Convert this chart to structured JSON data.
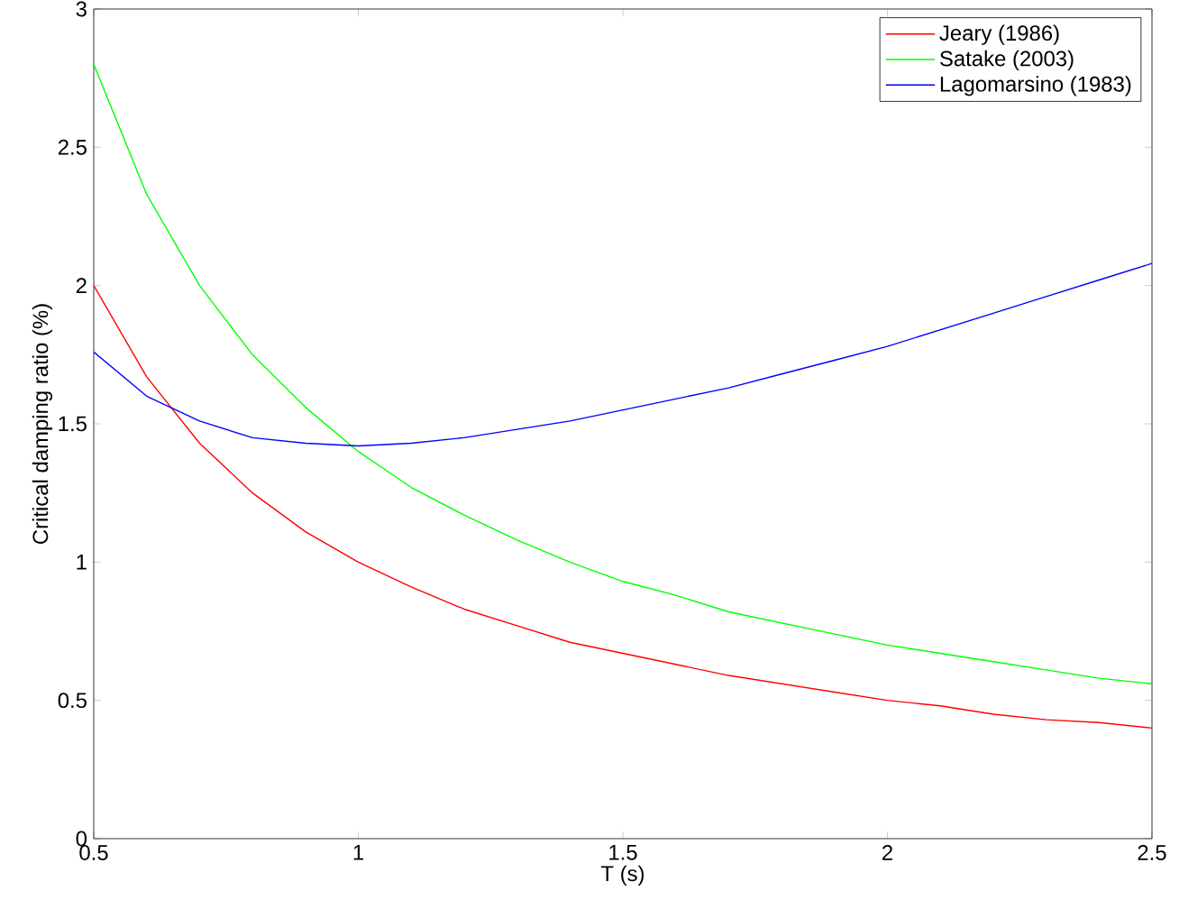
{
  "chart_data": {
    "type": "line",
    "xlabel": "T (s)",
    "ylabel": "Critical damping ratio (%)",
    "x": [
      0.5,
      0.6,
      0.7,
      0.8,
      0.9,
      1.0,
      1.1,
      1.2,
      1.3,
      1.4,
      1.5,
      1.6,
      1.7,
      1.8,
      1.9,
      2.0,
      2.1,
      2.2,
      2.3,
      2.4,
      2.5
    ],
    "series": [
      {
        "name": "Jeary (1986)",
        "color": "#ff0000",
        "values": [
          2.0,
          1.67,
          1.43,
          1.25,
          1.11,
          1.0,
          0.91,
          0.83,
          0.77,
          0.71,
          0.67,
          0.63,
          0.59,
          0.56,
          0.53,
          0.5,
          0.48,
          0.45,
          0.43,
          0.42,
          0.4
        ]
      },
      {
        "name": "Satake (2003)",
        "color": "#00ff00",
        "values": [
          2.8,
          2.33,
          2.0,
          1.75,
          1.56,
          1.4,
          1.27,
          1.17,
          1.08,
          1.0,
          0.93,
          0.88,
          0.82,
          0.78,
          0.74,
          0.7,
          0.67,
          0.64,
          0.61,
          0.58,
          0.56
        ]
      },
      {
        "name": "Lagomarsino (1983)",
        "color": "#0000ff",
        "values": [
          1.76,
          1.6,
          1.51,
          1.45,
          1.43,
          1.42,
          1.43,
          1.45,
          1.48,
          1.51,
          1.55,
          1.59,
          1.63,
          1.68,
          1.73,
          1.78,
          1.84,
          1.9,
          1.96,
          2.02,
          2.08
        ]
      }
    ],
    "xlim": [
      0.5,
      2.5
    ],
    "xticks": [
      0.5,
      1,
      1.5,
      2,
      2.5
    ],
    "ylim": [
      0,
      3
    ],
    "yticks": [
      0,
      0.5,
      1,
      1.5,
      2,
      2.5,
      3
    ],
    "legend": "top right",
    "grid": false,
    "marker": "none",
    "line_style": "solid"
  }
}
